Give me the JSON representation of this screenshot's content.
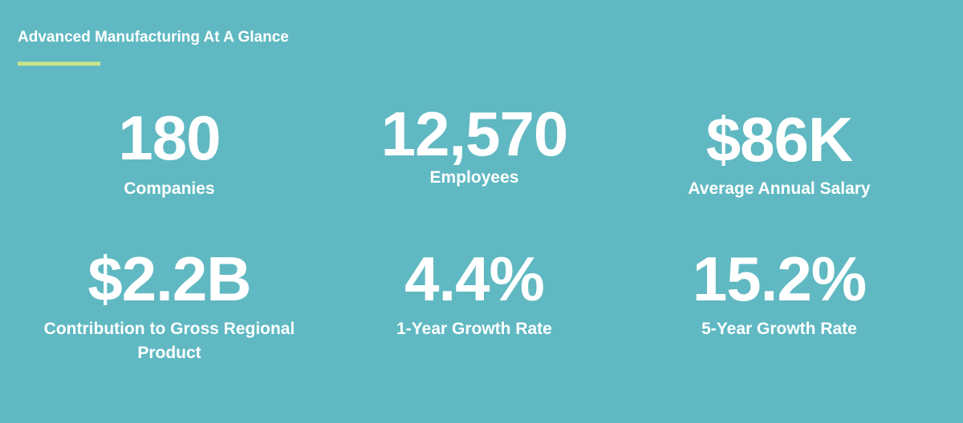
{
  "header": {
    "title": "Advanced Manufacturing At A Glance"
  },
  "stats": [
    {
      "value": "180",
      "label": "Companies"
    },
    {
      "value": "12,570",
      "label": "Employees"
    },
    {
      "value": "$86K",
      "label": "Average Annual Salary"
    },
    {
      "value": "$2.2B",
      "label": "Contribution to Gross Regional Product"
    },
    {
      "value": "4.4%",
      "label": "1-Year Growth Rate"
    },
    {
      "value": "15.2%",
      "label": "5-Year Growth Rate"
    }
  ]
}
